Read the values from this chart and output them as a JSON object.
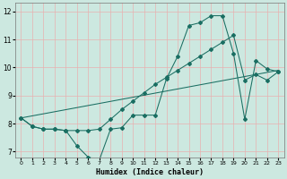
{
  "xlabel": "Humidex (Indice chaleur)",
  "xlim": [
    -0.5,
    23.5
  ],
  "ylim": [
    6.8,
    12.3
  ],
  "yticks": [
    7,
    8,
    9,
    10,
    11,
    12
  ],
  "xticks": [
    0,
    1,
    2,
    3,
    4,
    5,
    6,
    7,
    8,
    9,
    10,
    11,
    12,
    13,
    14,
    15,
    16,
    17,
    18,
    19,
    20,
    21,
    22,
    23
  ],
  "bg_color": "#cce8e0",
  "grid_color": "#e8b0b0",
  "line_color": "#1a6e62",
  "series1_x": [
    0,
    1,
    2,
    3,
    4,
    5,
    6,
    7,
    8,
    9,
    10,
    11,
    12,
    13,
    14,
    15,
    16,
    17,
    18,
    19,
    20,
    21,
    22,
    23
  ],
  "series1_y": [
    8.2,
    7.9,
    7.8,
    7.8,
    7.75,
    7.2,
    6.8,
    6.7,
    7.8,
    7.85,
    8.3,
    8.3,
    8.3,
    9.6,
    10.4,
    11.5,
    11.6,
    11.85,
    11.85,
    10.5,
    8.15,
    10.25,
    9.95,
    9.85
  ],
  "series2_x": [
    0,
    1,
    2,
    3,
    4,
    5,
    6,
    7,
    8,
    9,
    10,
    11,
    12,
    13,
    14,
    15,
    16,
    17,
    18,
    19,
    20,
    21,
    22,
    23
  ],
  "series2_y": [
    8.2,
    7.9,
    7.8,
    7.8,
    7.75,
    7.75,
    7.75,
    7.8,
    8.15,
    8.5,
    8.8,
    9.1,
    9.4,
    9.65,
    9.9,
    10.15,
    10.4,
    10.65,
    10.9,
    11.15,
    9.55,
    9.75,
    9.55,
    9.85
  ],
  "series3_x": [
    0,
    23
  ],
  "series3_y": [
    8.2,
    9.9
  ]
}
